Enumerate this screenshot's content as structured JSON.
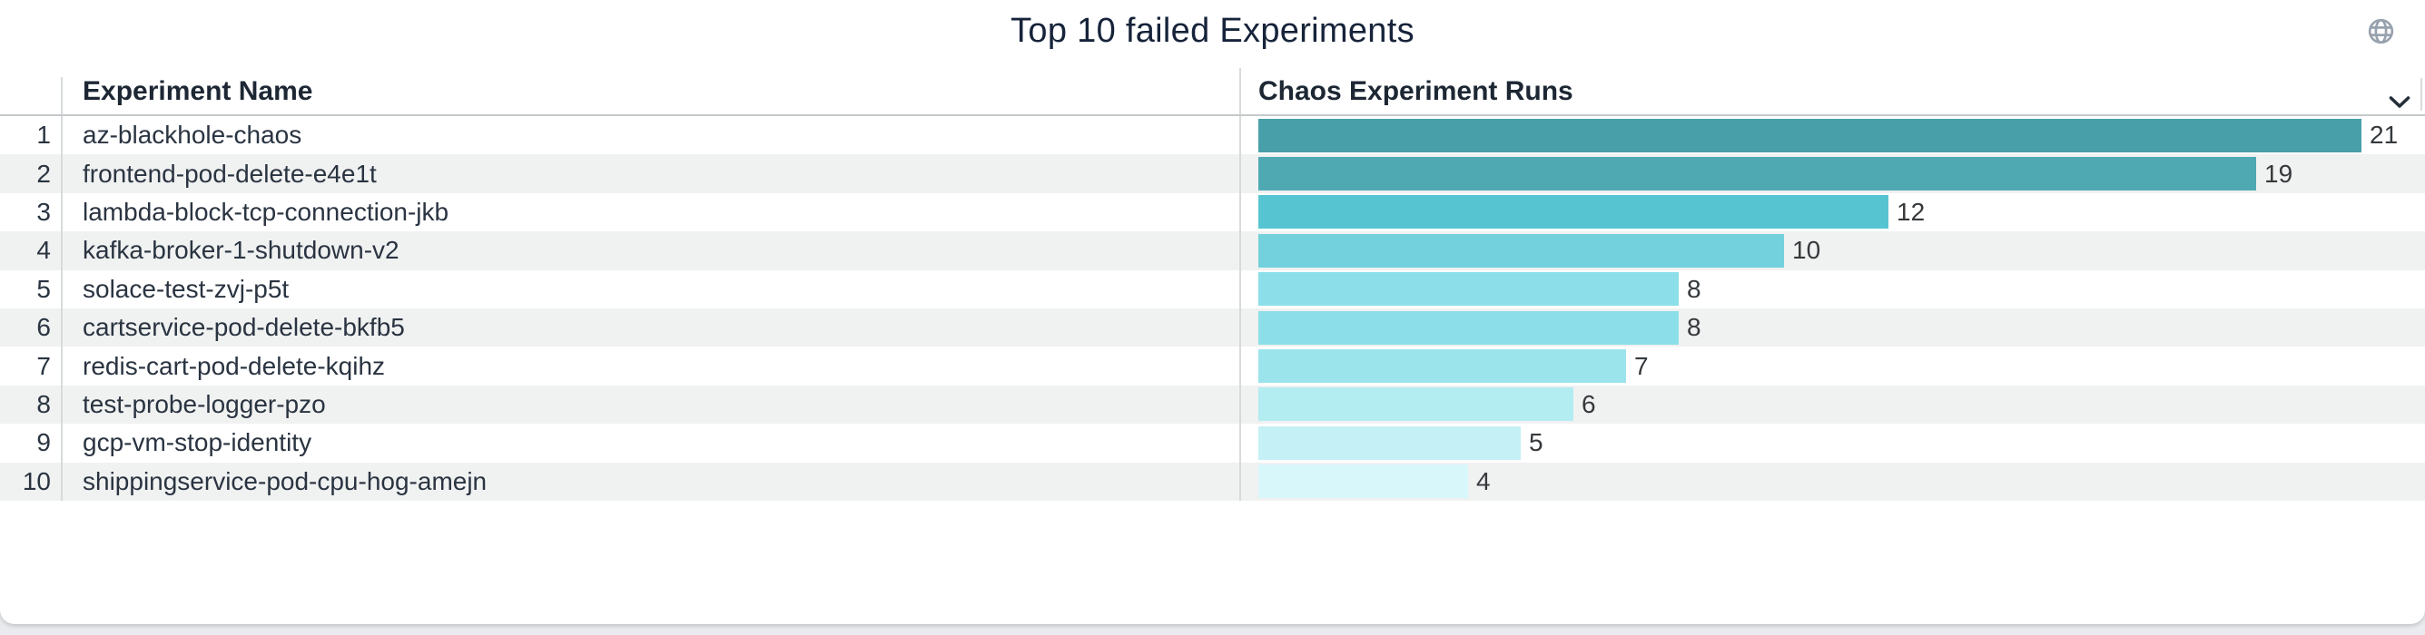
{
  "header": {
    "title": "Top 10 failed Experiments",
    "title_color": "#16233a",
    "globe_icon": "globe",
    "globe_icon_color": "#98a2ae",
    "chevron_icon": "chevron-down",
    "chevron_icon_color": "#252e39"
  },
  "table": {
    "columns": {
      "name": "Experiment Name",
      "runs": "Chaos Experiment Runs"
    },
    "zebra_color": "#f0f1f1",
    "rows": [
      {
        "rank": "1",
        "name": "az-blackhole-chaos",
        "runs": 21,
        "bar_color": "#489fa9"
      },
      {
        "rank": "2",
        "name": "frontend-pod-delete-e4e1t",
        "runs": 19,
        "bar_color": "#4fa9b3"
      },
      {
        "rank": "3",
        "name": "lambda-block-tcp-connection-jkb",
        "runs": 12,
        "bar_color": "#57c5d1"
      },
      {
        "rank": "4",
        "name": "kafka-broker-1-shutdown-v2",
        "runs": 10,
        "bar_color": "#72d1dc"
      },
      {
        "rank": "5",
        "name": "solace-test-zvj-p5t",
        "runs": 8,
        "bar_color": "#8cdfe8"
      },
      {
        "rank": "6",
        "name": "cartservice-pod-delete-bkfb5",
        "runs": 8,
        "bar_color": "#8cdfe8"
      },
      {
        "rank": "7",
        "name": "redis-cart-pod-delete-kqihz",
        "runs": 7,
        "bar_color": "#9ce4ec"
      },
      {
        "rank": "8",
        "name": "test-probe-logger-pzo",
        "runs": 6,
        "bar_color": "#b3ecf1"
      },
      {
        "rank": "9",
        "name": "gcp-vm-stop-identity",
        "runs": 5,
        "bar_color": "#c5f1f6"
      },
      {
        "rank": "10",
        "name": "shippingservice-pod-cpu-hog-amejn",
        "runs": 4,
        "bar_color": "#d8f7fa"
      }
    ]
  },
  "chart_data": {
    "type": "bar",
    "orientation": "horizontal",
    "title": "Top 10 failed Experiments",
    "series_label": "Chaos Experiment Runs",
    "categories": [
      "az-blackhole-chaos",
      "frontend-pod-delete-e4e1t",
      "lambda-block-tcp-connection-jkb",
      "kafka-broker-1-shutdown-v2",
      "solace-test-zvj-p5t",
      "cartservice-pod-delete-bkfb5",
      "redis-cart-pod-delete-kqihz",
      "test-probe-logger-pzo",
      "gcp-vm-stop-identity",
      "shippingservice-pod-cpu-hog-amejn"
    ],
    "values": [
      21,
      19,
      12,
      10,
      8,
      8,
      7,
      6,
      5,
      4
    ],
    "colors": [
      "#489fa9",
      "#4fa9b3",
      "#57c5d1",
      "#72d1dc",
      "#8cdfe8",
      "#8cdfe8",
      "#9ce4ec",
      "#b3ecf1",
      "#c5f1f6",
      "#d8f7fa"
    ],
    "value_labels": true,
    "xlim": [
      0,
      21
    ],
    "grid": false,
    "legend": false
  }
}
